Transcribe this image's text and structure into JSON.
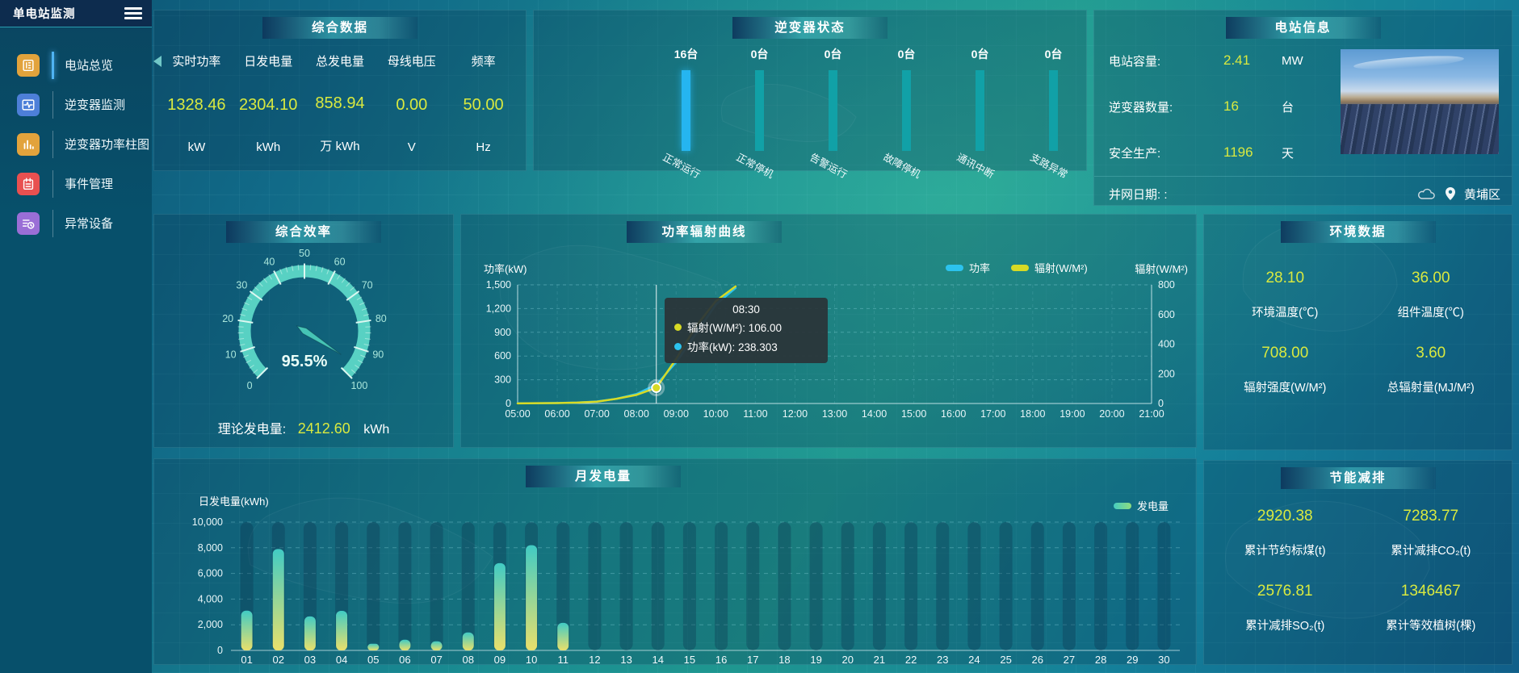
{
  "app": {
    "title": "单电站监测"
  },
  "sidebar": {
    "items": [
      {
        "label": "电站总览",
        "icon": "report-icon",
        "color": "#e2a33c",
        "active": true
      },
      {
        "label": "逆变器监测",
        "icon": "waveform-icon",
        "color": "#4d7fd8",
        "active": false
      },
      {
        "label": "逆变器功率柱图",
        "icon": "barchart-icon",
        "color": "#e2a33c",
        "active": false
      },
      {
        "label": "事件管理",
        "icon": "event-icon",
        "color": "#e85050",
        "active": false
      },
      {
        "label": "异常设备",
        "icon": "device-icon",
        "color": "#9a6ed6",
        "active": false
      }
    ]
  },
  "summary": {
    "title": "综合数据",
    "metrics": [
      {
        "label": "实时功率",
        "value": "1328.46",
        "unit": "kW"
      },
      {
        "label": "日发电量",
        "value": "2304.10",
        "unit": "kWh"
      },
      {
        "label": "总发电量",
        "value": "858.94",
        "unit": "万 kWh"
      },
      {
        "label": "母线电压",
        "value": "0.00",
        "unit": "V"
      },
      {
        "label": "频率",
        "value": "50.00",
        "unit": "Hz"
      }
    ]
  },
  "inverter_status": {
    "title": "逆变器状态",
    "items": [
      {
        "count": "16台",
        "label": "正常运行",
        "highlight": true
      },
      {
        "count": "0台",
        "label": "正常停机",
        "highlight": false
      },
      {
        "count": "0台",
        "label": "告警运行",
        "highlight": false
      },
      {
        "count": "0台",
        "label": "故障停机",
        "highlight": false
      },
      {
        "count": "0台",
        "label": "通讯中断",
        "highlight": false
      },
      {
        "count": "0台",
        "label": "支路异常",
        "highlight": false
      }
    ]
  },
  "station_info": {
    "title": "电站信息",
    "rows": [
      {
        "label": "电站容量:",
        "value": "2.41",
        "unit": "MW"
      },
      {
        "label": "逆变器数量:",
        "value": "16",
        "unit": "台"
      },
      {
        "label": "安全生产:",
        "value": "1196",
        "unit": "天"
      }
    ],
    "grid_date_label": "并网日期: :",
    "location": "黄埔区"
  },
  "efficiency": {
    "title": "综合效率",
    "footer": {
      "label": "理论发电量:",
      "value": "2412.60",
      "unit": "kWh"
    },
    "chart_data": {
      "type": "gauge",
      "min": 0,
      "max": 100,
      "value": 95.5,
      "display": "95.5%",
      "major_ticks": [
        0,
        10,
        20,
        30,
        40,
        50,
        60,
        70,
        80,
        90,
        100
      ]
    }
  },
  "power_curve": {
    "title": "功率辐射曲线",
    "y_left_label": "功率(kW)",
    "y_right_label": "辐射(W/M²)",
    "legend": [
      {
        "label": "功率",
        "color": "#2cc3ee"
      },
      {
        "label": "辐射(W/M²)",
        "color": "#d7da25"
      }
    ],
    "tooltip": {
      "time": "08:30",
      "lines": [
        {
          "text": "辐射(W/M²): 106.00",
          "color": "#d7da25"
        },
        {
          "text": "功率(kW): 238.303",
          "color": "#2cc3ee"
        }
      ]
    },
    "chart_data": {
      "type": "line",
      "x_ticks": [
        "05:00",
        "06:00",
        "07:00",
        "08:00",
        "09:00",
        "10:00",
        "11:00",
        "12:00",
        "13:00",
        "14:00",
        "15:00",
        "16:00",
        "17:00",
        "18:00",
        "19:00",
        "20:00",
        "21:00"
      ],
      "x_min": 5,
      "x_max": 21,
      "y_left": {
        "min": 0,
        "max": 1500,
        "tick_labels": [
          "0",
          "300",
          "600",
          "900",
          "1,200",
          "1,500"
        ]
      },
      "y_right": {
        "min": 0,
        "max": 800,
        "tick_labels": [
          "0",
          "200",
          "400",
          "600",
          "800"
        ]
      },
      "series": [
        {
          "name": "功率",
          "axis": "left",
          "color": "#2cc3ee",
          "points": [
            [
              5,
              2
            ],
            [
              5.5,
              3
            ],
            [
              6,
              6
            ],
            [
              6.5,
              12
            ],
            [
              7,
              25
            ],
            [
              7.5,
              60
            ],
            [
              8,
              120
            ],
            [
              8.5,
              238.3
            ],
            [
              9,
              520
            ],
            [
              9.5,
              880
            ],
            [
              10,
              1250
            ],
            [
              10.5,
              1460
            ]
          ]
        },
        {
          "name": "辐射",
          "axis": "right",
          "color": "#d7da25",
          "points": [
            [
              5,
              1
            ],
            [
              5.5,
              2
            ],
            [
              6,
              3
            ],
            [
              6.5,
              6
            ],
            [
              7,
              12
            ],
            [
              7.5,
              32
            ],
            [
              8,
              58
            ],
            [
              8.5,
              106
            ],
            [
              9,
              300
            ],
            [
              9.5,
              520
            ],
            [
              10,
              690
            ],
            [
              10.5,
              790
            ]
          ]
        }
      ],
      "cursor_x": 8.5,
      "marker": {
        "x": 8.5,
        "value": 106,
        "axis": "right"
      }
    }
  },
  "environment": {
    "title": "环境数据",
    "items": [
      {
        "value": "28.10",
        "label": "环境温度(℃)"
      },
      {
        "value": "36.00",
        "label": "组件温度(℃)"
      },
      {
        "value": "708.00",
        "label": "辐射强度(W/M²)"
      },
      {
        "value": "3.60",
        "label": "总辐射量(MJ/M²)"
      }
    ]
  },
  "monthly": {
    "title": "月发电量",
    "y_label": "日发电量(kWh)",
    "legend": [
      {
        "label": "发电量"
      }
    ],
    "chart_data": {
      "type": "bar",
      "categories": [
        "01",
        "02",
        "03",
        "04",
        "05",
        "06",
        "07",
        "08",
        "09",
        "10",
        "11",
        "12",
        "13",
        "14",
        "15",
        "16",
        "17",
        "18",
        "19",
        "20",
        "21",
        "22",
        "23",
        "24",
        "25",
        "26",
        "27",
        "28",
        "29",
        "30"
      ],
      "values": [
        3100,
        7900,
        2650,
        3080,
        520,
        830,
        710,
        1400,
        6800,
        8200,
        2150,
        0,
        0,
        0,
        0,
        0,
        0,
        0,
        0,
        0,
        0,
        0,
        0,
        0,
        0,
        0,
        0,
        0,
        0,
        0
      ],
      "ylim": [
        0,
        10000
      ],
      "y_tick_labels": [
        "0",
        "2,000",
        "4,000",
        "6,000",
        "8,000",
        "10,000"
      ]
    }
  },
  "energy_saving": {
    "title": "节能减排",
    "items": [
      {
        "value": "2920.38",
        "label": "累计节约标煤(t)"
      },
      {
        "value": "7283.77",
        "label": "累计减排CO₂(t)"
      },
      {
        "value": "2576.81",
        "label": "累计减排SO₂(t)"
      },
      {
        "value": "1346467",
        "label": "累计等效植树(棵)"
      }
    ]
  },
  "colors": {
    "accent_yellow": "#d9e93f",
    "gauge_teal": "#58d1c3",
    "bar_blue": "#25b5f0",
    "bar_teal": "#11a1a7",
    "bar_grad_top": "#41cbc4",
    "bar_grad_bottom": "#e9e06b"
  }
}
